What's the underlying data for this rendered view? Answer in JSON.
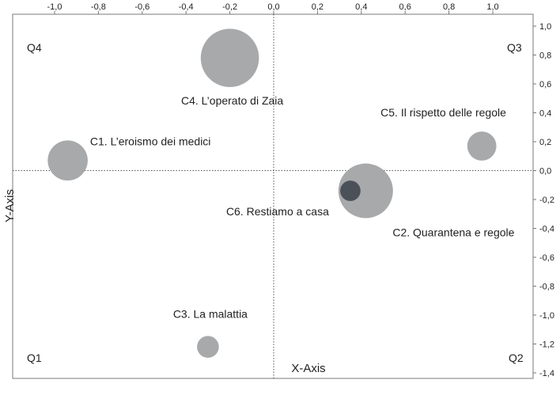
{
  "chart_data": {
    "type": "scatter",
    "subtype": "bubble",
    "title": "",
    "xlabel": "X-Axis",
    "ylabel": "Y-Axis",
    "xlim": [
      -1.1,
      1.1
    ],
    "ylim": [
      -1.4,
      1.0
    ],
    "x_ticks": [
      "-1,0",
      "-0,8",
      "-0,6",
      "-0,4",
      "-0,2",
      "0,0",
      "0,2",
      "0,4",
      "0,6",
      "0,8",
      "1,0"
    ],
    "x_tick_values": [
      -1.0,
      -0.8,
      -0.6,
      -0.4,
      -0.2,
      0.0,
      0.2,
      0.4,
      0.6,
      0.8,
      1.0
    ],
    "y_ticks": [
      "1,0",
      "0,8",
      "0,6",
      "0,4",
      "0,2",
      "0,0",
      "-0,2",
      "-0,4",
      "-0,6",
      "-0,8",
      "-1,0",
      "-1,2",
      "-1,4"
    ],
    "y_tick_values": [
      1.0,
      0.8,
      0.6,
      0.4,
      0.2,
      0.0,
      -0.2,
      -0.4,
      -0.6,
      -0.8,
      -1.0,
      -1.2,
      -1.4
    ],
    "quadrants": {
      "q1": "Q1",
      "q2": "Q2",
      "q3": "Q3",
      "q4": "Q4"
    },
    "points": [
      {
        "id": "c1",
        "label": "C1. L’eroismo dei medici",
        "x": -0.94,
        "y": 0.07,
        "size": 0.055,
        "color": "#a7a9ab",
        "label_anchor": "right"
      },
      {
        "id": "c2",
        "label": "C2. Quarantena e regole",
        "x": 0.42,
        "y": -0.14,
        "size": 0.075,
        "color": "#a7a9ab",
        "label_anchor": "below-right"
      },
      {
        "id": "c3",
        "label": "C3. La malattia",
        "x": -0.3,
        "y": -1.22,
        "size": 0.03,
        "color": "#a7a9ab",
        "label_anchor": "above"
      },
      {
        "id": "c4",
        "label": "C4. L’operato di Zaia",
        "x": -0.2,
        "y": 0.78,
        "size": 0.08,
        "color": "#a7a9ab",
        "label_anchor": "below"
      },
      {
        "id": "c5",
        "label": "C5. Il rispetto delle regole",
        "x": 0.95,
        "y": 0.17,
        "size": 0.04,
        "color": "#a7a9ab",
        "label_anchor": "above-left"
      },
      {
        "id": "c6",
        "label": "C6. Restiamo a casa",
        "x": 0.35,
        "y": -0.14,
        "size": 0.028,
        "color": "#4b5158",
        "label_anchor": "left-below"
      }
    ],
    "grid": false,
    "reference_lines": [
      {
        "axis": "x",
        "value": 0.0,
        "style": "dotted"
      },
      {
        "axis": "y",
        "value": 0.0,
        "style": "dotted"
      }
    ],
    "colors": {
      "bubble": "#a7a9ab",
      "bubble_dark": "#4b5158",
      "frame": "#777777"
    }
  }
}
